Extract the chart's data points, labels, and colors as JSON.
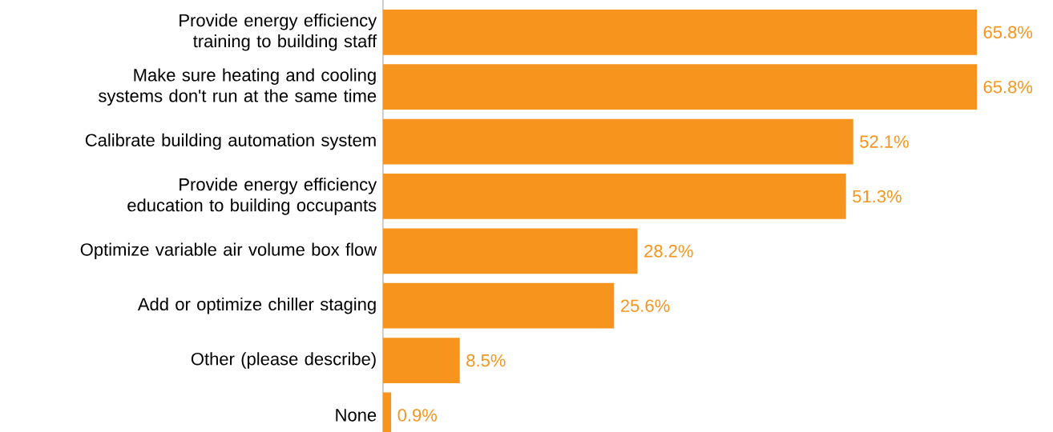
{
  "chart_data": {
    "type": "bar",
    "orientation": "horizontal",
    "categories": [
      "Provide energy efficiency training to building staff",
      "Make sure heating and cooling systems don't run at the same time",
      "Calibrate building automation system",
      "Provide energy efficiency education to building occupants",
      "Optimize variable air volume box flow",
      "Add or optimize chiller staging",
      "Other (please describe)",
      "None"
    ],
    "values": [
      65.8,
      65.8,
      52.1,
      51.3,
      28.2,
      25.6,
      8.5,
      0.9
    ],
    "value_labels": [
      "65.8%",
      "65.8%",
      "52.1%",
      "51.3%",
      "28.2%",
      "25.6%",
      "8.5%",
      "0.9%"
    ],
    "color": "#f7941d"
  }
}
